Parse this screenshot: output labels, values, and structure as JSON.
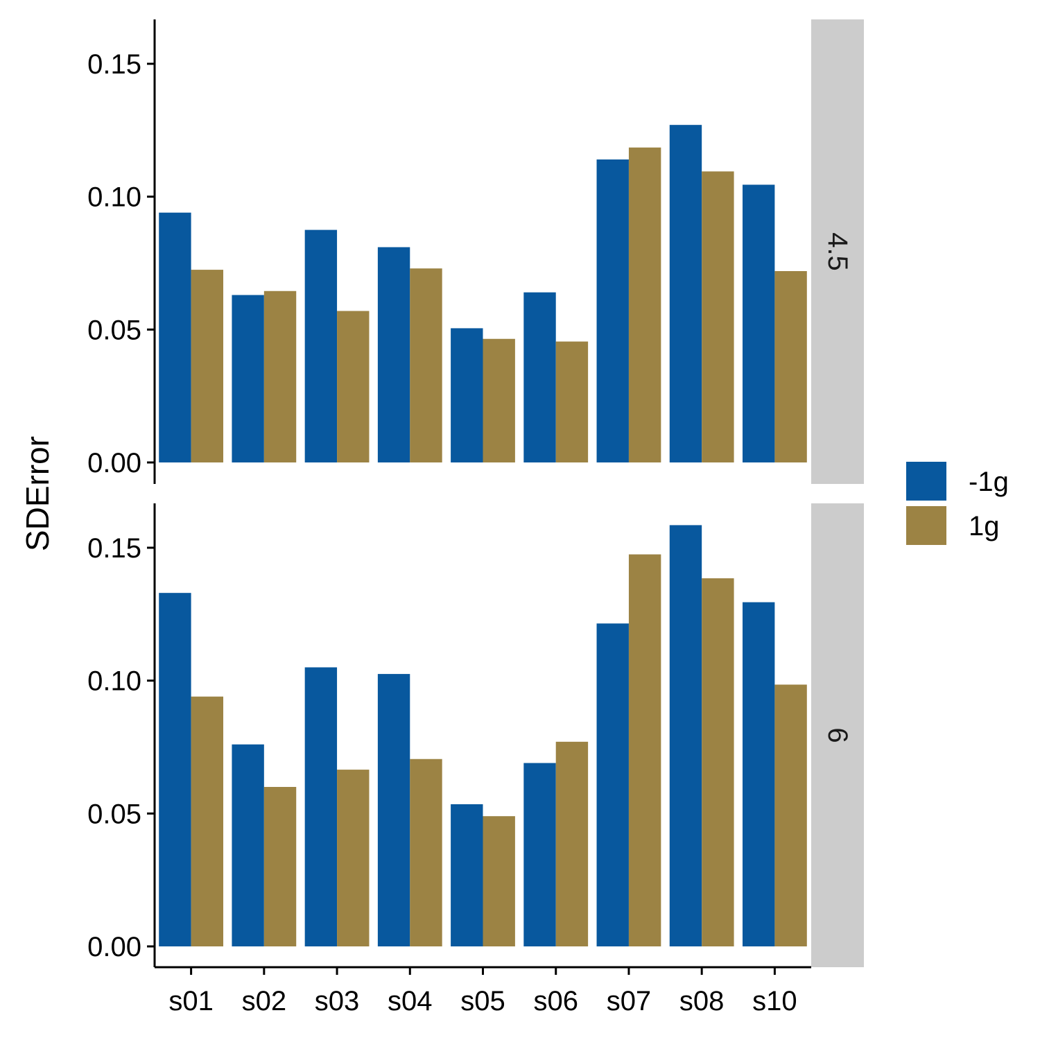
{
  "chart_data": {
    "type": "bar",
    "layout": "faceted-rows",
    "ylabel": "SDError",
    "xlabel": "",
    "categories": [
      "s01",
      "s02",
      "s03",
      "s04",
      "s05",
      "s06",
      "s07",
      "s08",
      "s10"
    ],
    "y_ticks": [
      "0.00",
      "0.05",
      "0.10",
      "0.15"
    ],
    "ylim": [
      0,
      0.166
    ],
    "grid": false,
    "legend": {
      "position": "right",
      "entries": [
        {
          "label": "-1g",
          "color": "#08589E"
        },
        {
          "label": "1g",
          "color": "#9C8344"
        }
      ]
    },
    "facets": [
      {
        "label": "4.5",
        "series": [
          {
            "name": "-1g",
            "values": [
              0.094,
              0.063,
              0.0875,
              0.081,
              0.0505,
              0.064,
              0.114,
              0.127,
              0.1045
            ]
          },
          {
            "name": "1g",
            "values": [
              0.0725,
              0.0645,
              0.057,
              0.073,
              0.0465,
              0.0455,
              0.1185,
              0.1095,
              0.072
            ]
          }
        ]
      },
      {
        "label": "6",
        "series": [
          {
            "name": "-1g",
            "values": [
              0.133,
              0.076,
              0.105,
              0.1025,
              0.0535,
              0.069,
              0.1215,
              0.1585,
              0.1295
            ]
          },
          {
            "name": "1g",
            "values": [
              0.094,
              0.06,
              0.0665,
              0.0705,
              0.049,
              0.077,
              0.1475,
              0.1385,
              0.0985
            ]
          }
        ]
      }
    ]
  }
}
